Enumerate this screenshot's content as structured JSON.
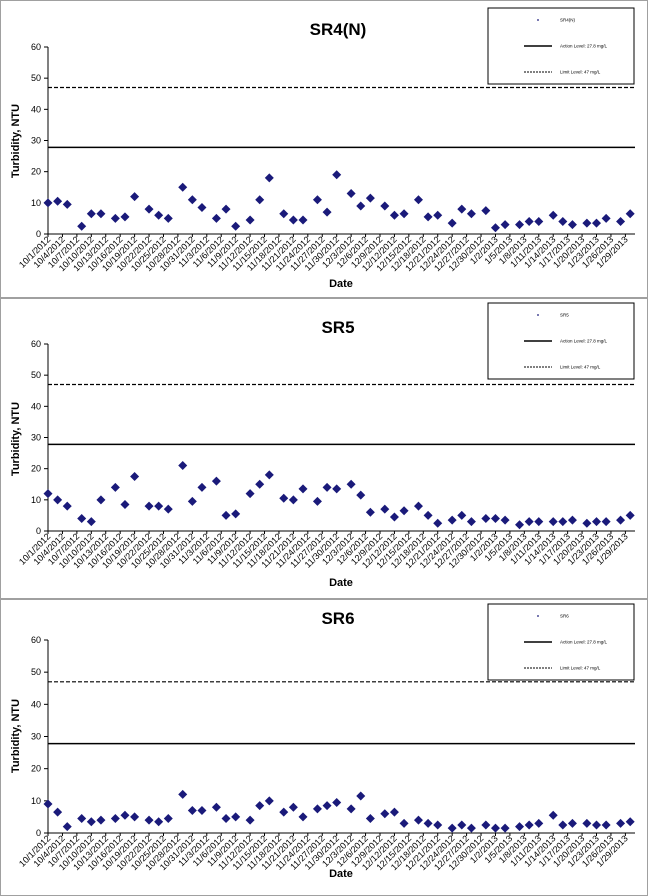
{
  "colors": {
    "marker": "#1a1a7a",
    "line": "#000000",
    "frame": "#a0a0a0"
  },
  "chart_data": [
    {
      "type": "scatter",
      "title": "SR4(N)",
      "xlabel": "Date",
      "ylabel": "Turbidity, NTU",
      "ylim": [
        0,
        60
      ],
      "yticks": [
        0,
        10,
        20,
        30,
        40,
        50,
        60
      ],
      "xlim": [
        "2012-10-01",
        "2013-01-31"
      ],
      "xtick_labels": [
        "10/1/2012",
        "10/4/2012",
        "10/7/2012",
        "10/10/2012",
        "10/13/2012",
        "10/16/2012",
        "10/19/2012",
        "10/22/2012",
        "10/25/2012",
        "10/28/2012",
        "10/31/2012",
        "11/3/2012",
        "11/6/2012",
        "11/9/2012",
        "11/12/2012",
        "11/15/2012",
        "11/18/2012",
        "11/21/2012",
        "11/24/2012",
        "11/27/2012",
        "11/30/2012",
        "12/3/2012",
        "12/6/2012",
        "12/9/2012",
        "12/12/2012",
        "12/15/2012",
        "12/18/2012",
        "12/21/2012",
        "12/24/2012",
        "12/27/2012",
        "12/30/2012",
        "1/2/2013",
        "1/5/2013",
        "1/8/2013",
        "1/11/2013",
        "1/14/2013",
        "1/17/2013",
        "1/20/2013",
        "1/23/2013",
        "1/26/2013",
        "1/29/2013"
      ],
      "legend": {
        "placement": "top-right",
        "entries": [
          "SR4(N)",
          "Action Level: 27.8 mg/L",
          "Limit Level: 47 mg/L"
        ]
      },
      "reference_lines": [
        {
          "value": 27.8,
          "style": "solid"
        },
        {
          "value": 47,
          "style": "dashed"
        }
      ],
      "series": [
        {
          "name": "SR4(N)",
          "x": [
            "2012-10-01",
            "2012-10-03",
            "2012-10-05",
            "2012-10-08",
            "2012-10-10",
            "2012-10-12",
            "2012-10-15",
            "2012-10-17",
            "2012-10-19",
            "2012-10-22",
            "2012-10-24",
            "2012-10-26",
            "2012-10-29",
            "2012-10-31",
            "2012-11-02",
            "2012-11-05",
            "2012-11-07",
            "2012-11-09",
            "2012-11-12",
            "2012-11-14",
            "2012-11-16",
            "2012-11-19",
            "2012-11-21",
            "2012-11-23",
            "2012-11-26",
            "2012-11-28",
            "2012-11-30",
            "2012-12-03",
            "2012-12-05",
            "2012-12-07",
            "2012-12-10",
            "2012-12-12",
            "2012-12-14",
            "2012-12-17",
            "2012-12-19",
            "2012-12-21",
            "2012-12-24",
            "2012-12-26",
            "2012-12-28",
            "2012-12-31",
            "2013-01-02",
            "2013-01-04",
            "2013-01-07",
            "2013-01-09",
            "2013-01-11",
            "2013-01-14",
            "2013-01-16",
            "2013-01-18",
            "2013-01-21",
            "2013-01-23",
            "2013-01-25",
            "2013-01-28",
            "2013-01-30"
          ],
          "y": [
            10,
            10.5,
            9.5,
            2.5,
            6.5,
            6.5,
            5,
            5.5,
            12,
            8,
            6,
            5,
            15,
            11,
            8.5,
            5,
            8,
            2.5,
            4.5,
            11,
            18,
            6.5,
            4.5,
            4.5,
            11,
            7,
            19,
            13,
            9,
            11.5,
            9,
            6,
            6.5,
            11,
            5.5,
            6,
            3.5,
            8,
            6.5,
            7.5,
            2,
            3,
            3,
            4,
            4,
            6,
            4,
            3,
            3.5,
            3.5,
            5,
            4,
            6.5
          ]
        }
      ]
    },
    {
      "type": "scatter",
      "title": "SR5",
      "xlabel": "Date",
      "ylabel": "Turbidity, NTU",
      "ylim": [
        0,
        60
      ],
      "yticks": [
        0,
        10,
        20,
        30,
        40,
        50,
        60
      ],
      "xlim": [
        "2012-10-01",
        "2013-01-31"
      ],
      "xtick_labels": [
        "10/1/2012",
        "10/4/2012",
        "10/7/2012",
        "10/10/2012",
        "10/13/2012",
        "10/16/2012",
        "10/19/2012",
        "10/22/2012",
        "10/25/2012",
        "10/28/2012",
        "10/31/2012",
        "11/3/2012",
        "11/6/2012",
        "11/9/2012",
        "11/12/2012",
        "11/15/2012",
        "11/18/2012",
        "11/21/2012",
        "11/24/2012",
        "11/27/2012",
        "11/30/2012",
        "12/3/2012",
        "12/6/2012",
        "12/9/2012",
        "12/12/2012",
        "12/15/2012",
        "12/18/2012",
        "12/21/2012",
        "12/24/2012",
        "12/27/2012",
        "12/30/2012",
        "1/2/2013",
        "1/5/2013",
        "1/8/2013",
        "1/11/2013",
        "1/14/2013",
        "1/17/2013",
        "1/20/2013",
        "1/23/2013",
        "1/26/2013",
        "1/29/2013"
      ],
      "legend": {
        "placement": "top-right",
        "entries": [
          "SR5",
          "Action Level: 27.8 mg/L",
          "Limit Level: 47 mg/L"
        ]
      },
      "reference_lines": [
        {
          "value": 27.8,
          "style": "solid"
        },
        {
          "value": 47,
          "style": "dashed"
        }
      ],
      "series": [
        {
          "name": "SR5",
          "x": [
            "2012-10-01",
            "2012-10-03",
            "2012-10-05",
            "2012-10-08",
            "2012-10-10",
            "2012-10-12",
            "2012-10-15",
            "2012-10-17",
            "2012-10-19",
            "2012-10-22",
            "2012-10-24",
            "2012-10-26",
            "2012-10-29",
            "2012-10-31",
            "2012-11-02",
            "2012-11-05",
            "2012-11-07",
            "2012-11-09",
            "2012-11-12",
            "2012-11-14",
            "2012-11-16",
            "2012-11-19",
            "2012-11-21",
            "2012-11-23",
            "2012-11-26",
            "2012-11-28",
            "2012-11-30",
            "2012-12-03",
            "2012-12-05",
            "2012-12-07",
            "2012-12-10",
            "2012-12-12",
            "2012-12-14",
            "2012-12-17",
            "2012-12-19",
            "2012-12-21",
            "2012-12-24",
            "2012-12-26",
            "2012-12-28",
            "2012-12-31",
            "2013-01-02",
            "2013-01-04",
            "2013-01-07",
            "2013-01-09",
            "2013-01-11",
            "2013-01-14",
            "2013-01-16",
            "2013-01-18",
            "2013-01-21",
            "2013-01-23",
            "2013-01-25",
            "2013-01-28",
            "2013-01-30"
          ],
          "y": [
            12,
            10,
            8,
            4,
            3,
            10,
            14,
            8.5,
            17.5,
            8,
            8,
            7,
            21,
            9.5,
            14,
            16,
            5,
            5.5,
            12,
            15,
            18,
            10.5,
            10,
            13.5,
            9.5,
            14,
            13.5,
            15,
            11.5,
            6,
            7,
            4.5,
            6.5,
            8,
            5,
            2.5,
            3.5,
            5,
            3,
            4,
            4,
            3.5,
            2,
            3,
            3,
            3,
            3,
            3.5,
            2.5,
            3,
            3,
            3.5,
            5
          ]
        }
      ]
    },
    {
      "type": "scatter",
      "title": "SR6",
      "xlabel": "Date",
      "ylabel": "Turbidity, NTU",
      "ylim": [
        0,
        60
      ],
      "yticks": [
        0,
        10,
        20,
        30,
        40,
        50,
        60
      ],
      "xlim": [
        "2012-10-01",
        "2013-01-31"
      ],
      "xtick_labels": [
        "10/1/2012",
        "10/4/2012",
        "10/7/2012",
        "10/10/2012",
        "10/13/2012",
        "10/16/2012",
        "10/19/2012",
        "10/22/2012",
        "10/25/2012",
        "10/28/2012",
        "10/31/2012",
        "11/3/2012",
        "11/6/2012",
        "11/9/2012",
        "11/12/2012",
        "11/15/2012",
        "11/18/2012",
        "11/21/2012",
        "11/24/2012",
        "11/27/2012",
        "11/30/2012",
        "12/3/2012",
        "12/6/2012",
        "12/9/2012",
        "12/12/2012",
        "12/15/2012",
        "12/18/2012",
        "12/21/2012",
        "12/24/2012",
        "12/27/2012",
        "12/30/2012",
        "1/2/2013",
        "1/5/2013",
        "1/8/2013",
        "1/11/2013",
        "1/14/2013",
        "1/17/2013",
        "1/20/2013",
        "1/23/2013",
        "1/26/2013",
        "1/29/2013"
      ],
      "legend": {
        "placement": "top-right",
        "entries": [
          "SR6",
          "Action Level: 27.8 mg/L",
          "Limit Level: 47 mg/L"
        ]
      },
      "reference_lines": [
        {
          "value": 27.8,
          "style": "solid"
        },
        {
          "value": 47,
          "style": "dashed"
        }
      ],
      "series": [
        {
          "name": "SR6",
          "x": [
            "2012-10-01",
            "2012-10-03",
            "2012-10-05",
            "2012-10-08",
            "2012-10-10",
            "2012-10-12",
            "2012-10-15",
            "2012-10-17",
            "2012-10-19",
            "2012-10-22",
            "2012-10-24",
            "2012-10-26",
            "2012-10-29",
            "2012-10-31",
            "2012-11-02",
            "2012-11-05",
            "2012-11-07",
            "2012-11-09",
            "2012-11-12",
            "2012-11-14",
            "2012-11-16",
            "2012-11-19",
            "2012-11-21",
            "2012-11-23",
            "2012-11-26",
            "2012-11-28",
            "2012-11-30",
            "2012-12-03",
            "2012-12-05",
            "2012-12-07",
            "2012-12-10",
            "2012-12-12",
            "2012-12-14",
            "2012-12-17",
            "2012-12-19",
            "2012-12-21",
            "2012-12-24",
            "2012-12-26",
            "2012-12-28",
            "2012-12-31",
            "2013-01-02",
            "2013-01-04",
            "2013-01-07",
            "2013-01-09",
            "2013-01-11",
            "2013-01-14",
            "2013-01-16",
            "2013-01-18",
            "2013-01-21",
            "2013-01-23",
            "2013-01-25",
            "2013-01-28",
            "2013-01-30"
          ],
          "y": [
            9,
            6.5,
            2,
            4.5,
            3.5,
            4,
            4.5,
            5.5,
            5,
            4,
            3.5,
            4.5,
            12,
            7,
            7,
            8,
            4.5,
            5,
            4,
            8.5,
            10,
            6.5,
            8,
            5,
            7.5,
            8.5,
            9.5,
            7.5,
            11.5,
            4.5,
            6,
            6.5,
            3,
            4,
            3,
            2.5,
            1.5,
            2.5,
            1.5,
            2.5,
            1.5,
            1.5,
            2,
            2.5,
            3,
            5.5,
            2.5,
            3,
            3,
            2.5,
            2.5,
            3,
            3.5
          ]
        }
      ]
    }
  ]
}
